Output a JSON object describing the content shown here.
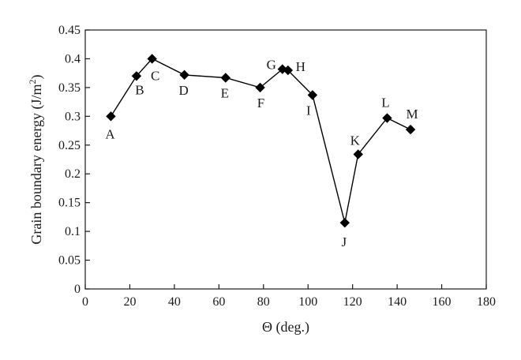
{
  "chart_data": {
    "type": "line",
    "xlabel": "Θ (deg.)",
    "ylabel": {
      "main": "Grain boundary energy (J/m",
      "sup": "2",
      "close": ")"
    },
    "xlim": [
      0,
      180
    ],
    "ylim": [
      0,
      0.45
    ],
    "xticks": [
      "0",
      "20",
      "40",
      "60",
      "80",
      "100",
      "120",
      "140",
      "160",
      "180"
    ],
    "yticks": [
      "0",
      "0.05",
      "0.1",
      "0.15",
      "0.2",
      "0.25",
      "0.3",
      "0.35",
      "0.4",
      "0.45"
    ],
    "grid": false,
    "marker": "diamond",
    "color": "#000000",
    "series": [
      {
        "points": [
          {
            "label": "A",
            "x": 11.5,
            "y": 0.3
          },
          {
            "label": "B",
            "x": 23.0,
            "y": 0.37
          },
          {
            "label": "C",
            "x": 30.0,
            "y": 0.4
          },
          {
            "label": "D",
            "x": 44.5,
            "y": 0.372
          },
          {
            "label": "E",
            "x": 63.0,
            "y": 0.367
          },
          {
            "label": "F",
            "x": 78.5,
            "y": 0.35
          },
          {
            "label": "G",
            "x": 88.5,
            "y": 0.382
          },
          {
            "label": "H",
            "x": 91.0,
            "y": 0.38
          },
          {
            "label": "I",
            "x": 102.0,
            "y": 0.337
          },
          {
            "label": "J",
            "x": 116.5,
            "y": 0.115
          },
          {
            "label": "K",
            "x": 122.5,
            "y": 0.234
          },
          {
            "label": "L",
            "x": 135.5,
            "y": 0.297
          },
          {
            "label": "M",
            "x": 146.0,
            "y": 0.277
          }
        ]
      }
    ]
  }
}
